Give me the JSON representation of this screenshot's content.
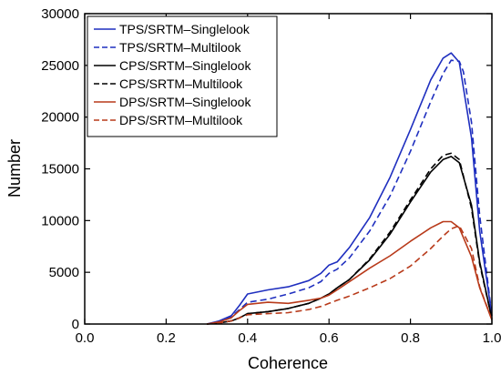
{
  "chart_data": {
    "type": "line",
    "xlabel": "Coherence",
    "ylabel": "Number",
    "xlim": [
      0,
      1
    ],
    "ylim": [
      0,
      30000
    ],
    "x_ticks": [
      0,
      0.2,
      0.4,
      0.6,
      0.8,
      1
    ],
    "x_tick_labels": [
      "0.0",
      "0.2",
      "0.4",
      "0.6",
      "0.8",
      "1.0"
    ],
    "y_ticks": [
      0,
      5000,
      10000,
      15000,
      20000,
      25000,
      30000
    ],
    "y_tick_labels": [
      "0",
      "5000",
      "10000",
      "15000",
      "20000",
      "25000",
      "30000"
    ],
    "legend_position": "top-left",
    "series": [
      {
        "name": "TPS/SRTM–Singlelook",
        "color": "#1f2fbf",
        "dash": "solid",
        "x": [
          0.3,
          0.33,
          0.36,
          0.38,
          0.4,
          0.45,
          0.5,
          0.55,
          0.58,
          0.6,
          0.62,
          0.65,
          0.7,
          0.75,
          0.8,
          0.85,
          0.88,
          0.9,
          0.92,
          0.95,
          0.97,
          1.0
        ],
        "y": [
          0,
          300,
          800,
          1800,
          2900,
          3300,
          3600,
          4200,
          4900,
          5700,
          6000,
          7400,
          10300,
          14200,
          18800,
          23600,
          25700,
          26200,
          25300,
          18000,
          9000,
          800
        ]
      },
      {
        "name": "TPS/SRTM–Multilook",
        "color": "#1f2fbf",
        "dash": "dashed",
        "x": [
          0.3,
          0.33,
          0.36,
          0.38,
          0.4,
          0.45,
          0.5,
          0.55,
          0.58,
          0.6,
          0.62,
          0.65,
          0.7,
          0.75,
          0.8,
          0.85,
          0.88,
          0.9,
          0.92,
          0.93,
          0.95,
          0.97,
          1.0
        ],
        "y": [
          0,
          250,
          700,
          1400,
          2100,
          2400,
          2900,
          3500,
          4100,
          4900,
          5300,
          6400,
          9000,
          12400,
          16700,
          21500,
          24200,
          25500,
          25400,
          24400,
          19500,
          10500,
          800
        ]
      },
      {
        "name": "CPS/SRTM–Singlelook",
        "color": "#000000",
        "dash": "solid",
        "x": [
          0.3,
          0.33,
          0.36,
          0.38,
          0.4,
          0.45,
          0.5,
          0.55,
          0.58,
          0.6,
          0.62,
          0.65,
          0.7,
          0.75,
          0.8,
          0.85,
          0.88,
          0.9,
          0.92,
          0.95,
          0.97,
          1.0
        ],
        "y": [
          0,
          100,
          300,
          600,
          1000,
          1200,
          1500,
          2000,
          2500,
          2900,
          3500,
          4300,
          6200,
          8700,
          11800,
          14700,
          15900,
          16200,
          15600,
          11500,
          6000,
          500
        ]
      },
      {
        "name": "CPS/SRTM–Multilook",
        "color": "#000000",
        "dash": "dashed",
        "x": [
          0.3,
          0.33,
          0.36,
          0.38,
          0.4,
          0.45,
          0.5,
          0.55,
          0.58,
          0.6,
          0.62,
          0.65,
          0.7,
          0.75,
          0.8,
          0.85,
          0.88,
          0.9,
          0.92,
          0.95,
          0.97,
          1.0
        ],
        "y": [
          0,
          100,
          300,
          600,
          1000,
          1200,
          1500,
          2000,
          2500,
          2900,
          3500,
          4300,
          6300,
          8900,
          12000,
          15000,
          16300,
          16500,
          15900,
          11200,
          5800,
          500
        ]
      },
      {
        "name": "DPS/SRTM–Singlelook",
        "color": "#b83a1a",
        "dash": "solid",
        "x": [
          0.3,
          0.33,
          0.36,
          0.38,
          0.4,
          0.45,
          0.5,
          0.55,
          0.58,
          0.6,
          0.62,
          0.65,
          0.7,
          0.75,
          0.8,
          0.85,
          0.88,
          0.9,
          0.92,
          0.95,
          0.97,
          1.0
        ],
        "y": [
          0,
          200,
          600,
          1300,
          1900,
          2100,
          2000,
          2300,
          2500,
          2800,
          3300,
          4100,
          5400,
          6600,
          8000,
          9300,
          9900,
          9900,
          9300,
          6500,
          3500,
          400
        ]
      },
      {
        "name": "DPS/SRTM–Multilook",
        "color": "#b83a1a",
        "dash": "dashed",
        "x": [
          0.3,
          0.33,
          0.36,
          0.38,
          0.4,
          0.45,
          0.5,
          0.55,
          0.58,
          0.6,
          0.62,
          0.65,
          0.7,
          0.75,
          0.8,
          0.85,
          0.88,
          0.9,
          0.92,
          0.95,
          0.97,
          1.0
        ],
        "y": [
          0,
          100,
          300,
          600,
          900,
          1000,
          1100,
          1400,
          1700,
          2000,
          2300,
          2700,
          3500,
          4400,
          5600,
          7300,
          8500,
          9200,
          9500,
          7300,
          3600,
          400
        ]
      }
    ]
  }
}
